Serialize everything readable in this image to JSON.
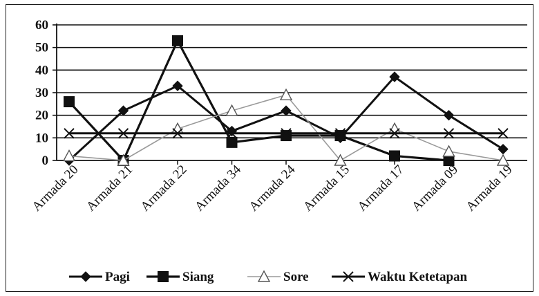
{
  "chart_data": {
    "type": "line",
    "categories": [
      "Armada 20",
      "Armada 21",
      "Armada 22",
      "Armada 34",
      "Armada 24",
      "Armada 15",
      "Armada 17",
      "Armada 09",
      "Armada 19"
    ],
    "ylim": [
      0,
      60
    ],
    "yticks": [
      0,
      10,
      20,
      30,
      40,
      50,
      60
    ],
    "grid": "horizontal",
    "legend_position": "bottom",
    "series": [
      {
        "name": "Pagi",
        "marker": "diamond",
        "color": "#111111",
        "values": [
          0,
          22,
          33,
          13,
          22,
          10,
          37,
          20,
          5
        ]
      },
      {
        "name": "Siang",
        "marker": "square",
        "color": "#111111",
        "values": [
          26,
          0,
          53,
          8,
          11,
          11,
          2,
          0,
          null
        ]
      },
      {
        "name": "Sore",
        "marker": "triangle",
        "color": "#aaaaaa",
        "values": [
          2,
          0,
          14,
          22,
          29,
          0,
          14,
          4,
          0
        ]
      },
      {
        "name": "Waktu Ketetapan",
        "marker": "x",
        "color": "#111111",
        "values": [
          12,
          12,
          12,
          12,
          12,
          12,
          12,
          12,
          12
        ]
      }
    ]
  }
}
